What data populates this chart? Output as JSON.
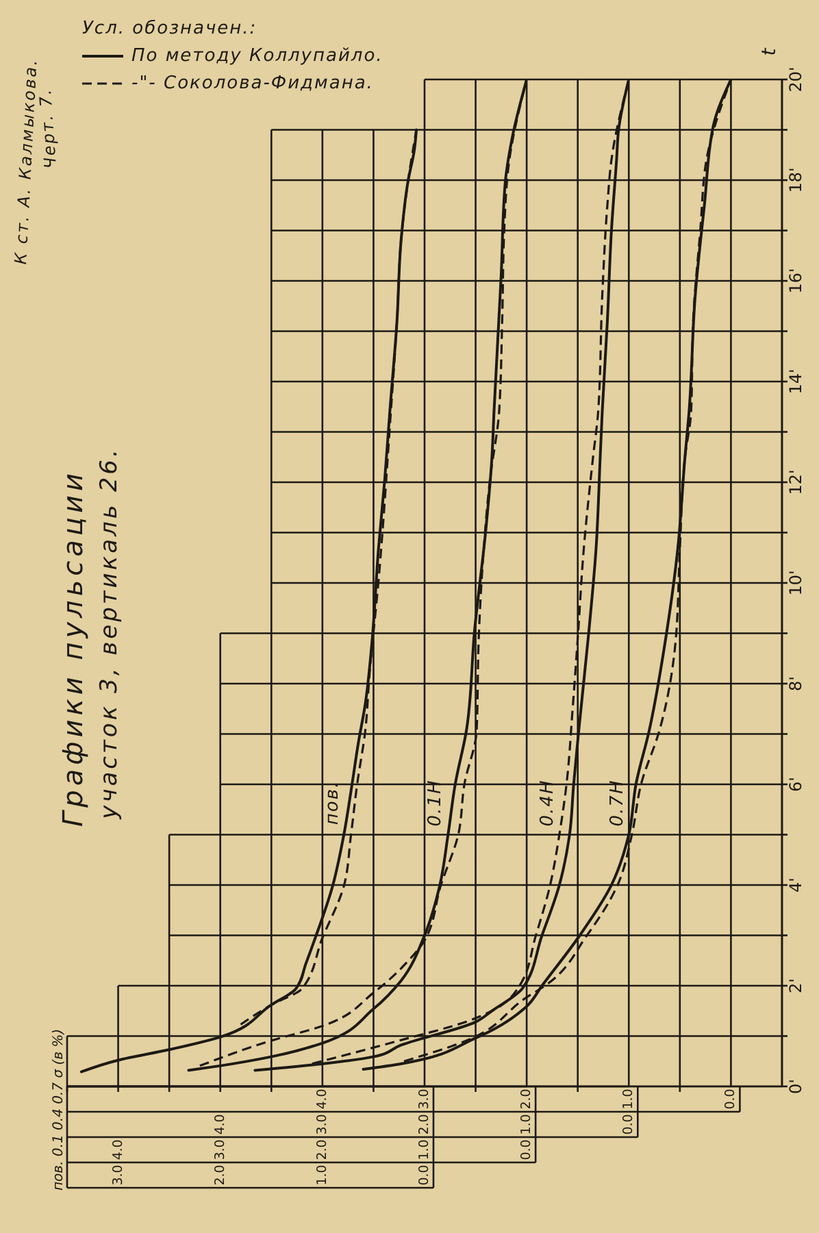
{
  "chart_data": [
    {
      "type": "line",
      "title": "Графики пульсации",
      "subtitle": "участок 3, вертикаль 26.",
      "legend_title": "Усл. обозначен.:",
      "legend": "top left",
      "annotations": [
        "К ст. А. Калмыкова.",
        "Черт. 7.",
        "пов. 0.1 0.4 0.7 σ (в %)",
        "пов."
      ],
      "xlim": [
        3.5,
        0
      ],
      "xticks": [
        {
          "value": 0,
          "label": "0.0"
        },
        {
          "value": 1,
          "label": "1.0"
        },
        {
          "value": 2,
          "label": "2.0"
        },
        {
          "value": 3,
          "label": "3.0"
        }
      ],
      "ylim": [
        0,
        20
      ],
      "tick_labels": "x",
      "series": [
        {
          "name": "По методу Коллупайло.",
          "color": "#1d1a15",
          "line_style": "solid",
          "x": [
            3.36,
            3.0,
            2.5,
            2.0,
            1.5,
            1.26,
            1.16,
            1.07,
            0.9,
            0.79,
            0.71,
            0.65,
            0.58,
            0.52,
            0.45,
            0.39,
            0.34,
            0.27,
            0.23,
            0.16,
            0.1,
            0.08
          ],
          "values": [
            0.29,
            0.52,
            0.73,
            0.98,
            1.62,
            1.94,
            2.45,
            2.95,
            3.98,
            5.0,
            6.0,
            6.8,
            7.6,
            8.7,
            10.7,
            12.05,
            13.4,
            15.2,
            16.8,
            18.0,
            18.6,
            19.0
          ]
        },
        {
          "name": "-\"- Соколова-Фидмана.",
          "color": "#1d1a15",
          "line_style": "dashed",
          "x": [
            1.8,
            1.5,
            1.2,
            1.0,
            0.79,
            0.72,
            0.66,
            0.58,
            0.54,
            0.45,
            0.33,
            0.27,
            0.23,
            0.16,
            0.08
          ],
          "values": [
            1.23,
            1.62,
            1.94,
            2.95,
            3.98,
            5.0,
            6.0,
            7.07,
            8.16,
            10.06,
            13.4,
            15.2,
            16.8,
            18.0,
            19.0
          ]
        }
      ]
    },
    {
      "type": "line",
      "annotations": [
        "0.1H"
      ],
      "xlim": [
        4.5,
        0
      ],
      "xticks": [
        {
          "value": 0,
          "label": "0.0"
        },
        {
          "value": 1,
          "label": "1.0"
        },
        {
          "value": 2,
          "label": "2.0"
        },
        {
          "value": 3,
          "label": "3.0"
        },
        {
          "value": 4,
          "label": "4.0"
        }
      ],
      "ylim": [
        0,
        20
      ],
      "tick_labels": "x",
      "series": [
        {
          "color": "#1d1a15",
          "line_style": "solid",
          "x": [
            3.31,
            3.0,
            2.5,
            2.0,
            1.5,
            1.23,
            1.0,
            0.85,
            0.77,
            0.7,
            0.59,
            0.51,
            0.4,
            0.34,
            0.32,
            0.25,
            0.21,
            0.14,
            0
          ],
          "values": [
            0.32,
            0.41,
            0.59,
            0.86,
            1.54,
            2.1,
            3.0,
            4.0,
            5.0,
            6.0,
            7.07,
            9.06,
            11.06,
            12.5,
            13.4,
            16.1,
            17.95,
            18.86,
            20
          ]
        },
        {
          "color": "#1d1a15",
          "line_style": "dashed",
          "x": [
            3.2,
            2.5,
            2.0,
            1.5,
            1.18,
            1.0,
            0.84,
            0.67,
            0.61,
            0.49,
            0.47,
            0.42,
            0.36,
            0.27,
            0.24,
            0.22,
            0.17,
            0
          ],
          "values": [
            0.41,
            0.91,
            1.2,
            1.86,
            2.45,
            2.9,
            4.0,
            5.0,
            6.0,
            7.07,
            8.88,
            10.69,
            12.05,
            13.4,
            15.2,
            17.0,
            18.4,
            20
          ]
        }
      ]
    },
    {
      "type": "line",
      "annotations": [
        "0.4H"
      ],
      "xlim": [
        5.5,
        0
      ],
      "xticks": [
        {
          "value": 0,
          "label": "0.0"
        },
        {
          "value": 1,
          "label": "1.0"
        },
        {
          "value": 2,
          "label": "2.0"
        },
        {
          "value": 3,
          "label": "3.0"
        },
        {
          "value": 4,
          "label": "4.0"
        }
      ],
      "ylim": [
        0,
        20
      ],
      "tick_labels": "x",
      "series": [
        {
          "color": "#1d1a15",
          "line_style": "solid",
          "x": [
            3.66,
            3.0,
            2.5,
            2.23,
            1.5,
            1.34,
            1.04,
            0.85,
            0.68,
            0.58,
            0.54,
            0.49,
            0.39,
            0.32,
            0.28,
            0.26,
            0.21,
            0.17,
            0.12,
            0.1,
            0
          ],
          "values": [
            0.32,
            0.45,
            0.59,
            0.82,
            1.28,
            1.5,
            1.95,
            3.0,
            4.0,
            5.0,
            6.0,
            7.07,
            9.06,
            10.7,
            12.5,
            13.4,
            15.2,
            17.0,
            18.4,
            19.0,
            20
          ]
        },
        {
          "color": "#1d1a15",
          "line_style": "dashed",
          "x": [
            3.1,
            2.23,
            1.6,
            1.34,
            1.07,
            0.91,
            0.77,
            0.68,
            0.61,
            0.55,
            0.5,
            0.44,
            0.35,
            0.3,
            0.26,
            0.21,
            0.17,
            0
          ],
          "values": [
            0.45,
            0.92,
            1.28,
            1.5,
            2.0,
            3.0,
            4.0,
            5.0,
            6.0,
            7.5,
            8.9,
            10.7,
            12.5,
            13.4,
            15.7,
            17.5,
            18.4,
            20
          ]
        }
      ]
    },
    {
      "type": "line",
      "ylabel": "t",
      "annotations": [
        "0.7H"
      ],
      "xlim": [
        6.5,
        -0.5
      ],
      "xticks": [
        {
          "value": 0,
          "label": "0.0"
        },
        {
          "value": 0.5,
          "label": null
        },
        {
          "value": 1,
          "label": "1.0"
        },
        {
          "value": 1.5,
          "label": null
        },
        {
          "value": 2,
          "label": "2.0"
        },
        {
          "value": 2.5,
          "label": null
        },
        {
          "value": 3,
          "label": "3.0"
        },
        {
          "value": 3.5,
          "label": null
        },
        {
          "value": 4,
          "label": "4.0"
        },
        {
          "value": 4.5,
          "label": null
        },
        {
          "value": 5,
          "label": null
        },
        {
          "value": 5.5,
          "label": null
        },
        {
          "value": 6,
          "label": null
        },
        {
          "value": 6.5,
          "label": null
        }
      ],
      "ylim": [
        0,
        20
      ],
      "yticks": [
        {
          "value": 0,
          "label": "0'"
        },
        {
          "value": 1,
          "label": null
        },
        {
          "value": 2,
          "label": "2'"
        },
        {
          "value": 3,
          "label": null
        },
        {
          "value": 4,
          "label": "4'"
        },
        {
          "value": 5,
          "label": null
        },
        {
          "value": 6,
          "label": "6'"
        },
        {
          "value": 7,
          "label": null
        },
        {
          "value": 8,
          "label": "8'"
        },
        {
          "value": 9,
          "label": null
        },
        {
          "value": 10,
          "label": "10'"
        },
        {
          "value": 11,
          "label": null
        },
        {
          "value": 12,
          "label": "12'"
        },
        {
          "value": 13,
          "label": null
        },
        {
          "value": 14,
          "label": "14'"
        },
        {
          "value": 15,
          "label": null
        },
        {
          "value": 16,
          "label": "16'"
        },
        {
          "value": 17,
          "label": null
        },
        {
          "value": 18,
          "label": "18'"
        },
        {
          "value": 19,
          "label": null
        },
        {
          "value": 20,
          "label": "20'"
        }
      ],
      "grid": true,
      "series": [
        {
          "color": "#1d1a15",
          "line_style": "solid",
          "x": [
            3.6,
            3.23,
            2.5,
            2.0,
            1.85,
            1.48,
            1.17,
            1.0,
            0.93,
            0.8,
            0.64,
            0.52,
            0.45,
            0.41,
            0.35,
            0.26,
            0.17,
            0
          ],
          "values": [
            0.34,
            0.45,
            0.96,
            1.59,
            2.0,
            3.0,
            4.0,
            5.0,
            6.0,
            7.07,
            8.88,
            10.69,
            12.5,
            13.4,
            15.7,
            17.5,
            19.1,
            20
          ]
        },
        {
          "color": "#1d1a15",
          "line_style": "dashed",
          "x": [
            3.2,
            2.6,
            2.0,
            1.82,
            1.41,
            1.11,
            0.97,
            0.88,
            0.7,
            0.54,
            0.5,
            0.45,
            0.39,
            0.37,
            0.3,
            0.24,
            0
          ],
          "values": [
            0.5,
            0.9,
            1.77,
            2.0,
            3.0,
            4.0,
            5.0,
            6.0,
            7.07,
            8.88,
            10.69,
            12.5,
            13.4,
            15.2,
            17.0,
            18.4,
            20
          ]
        }
      ]
    }
  ]
}
